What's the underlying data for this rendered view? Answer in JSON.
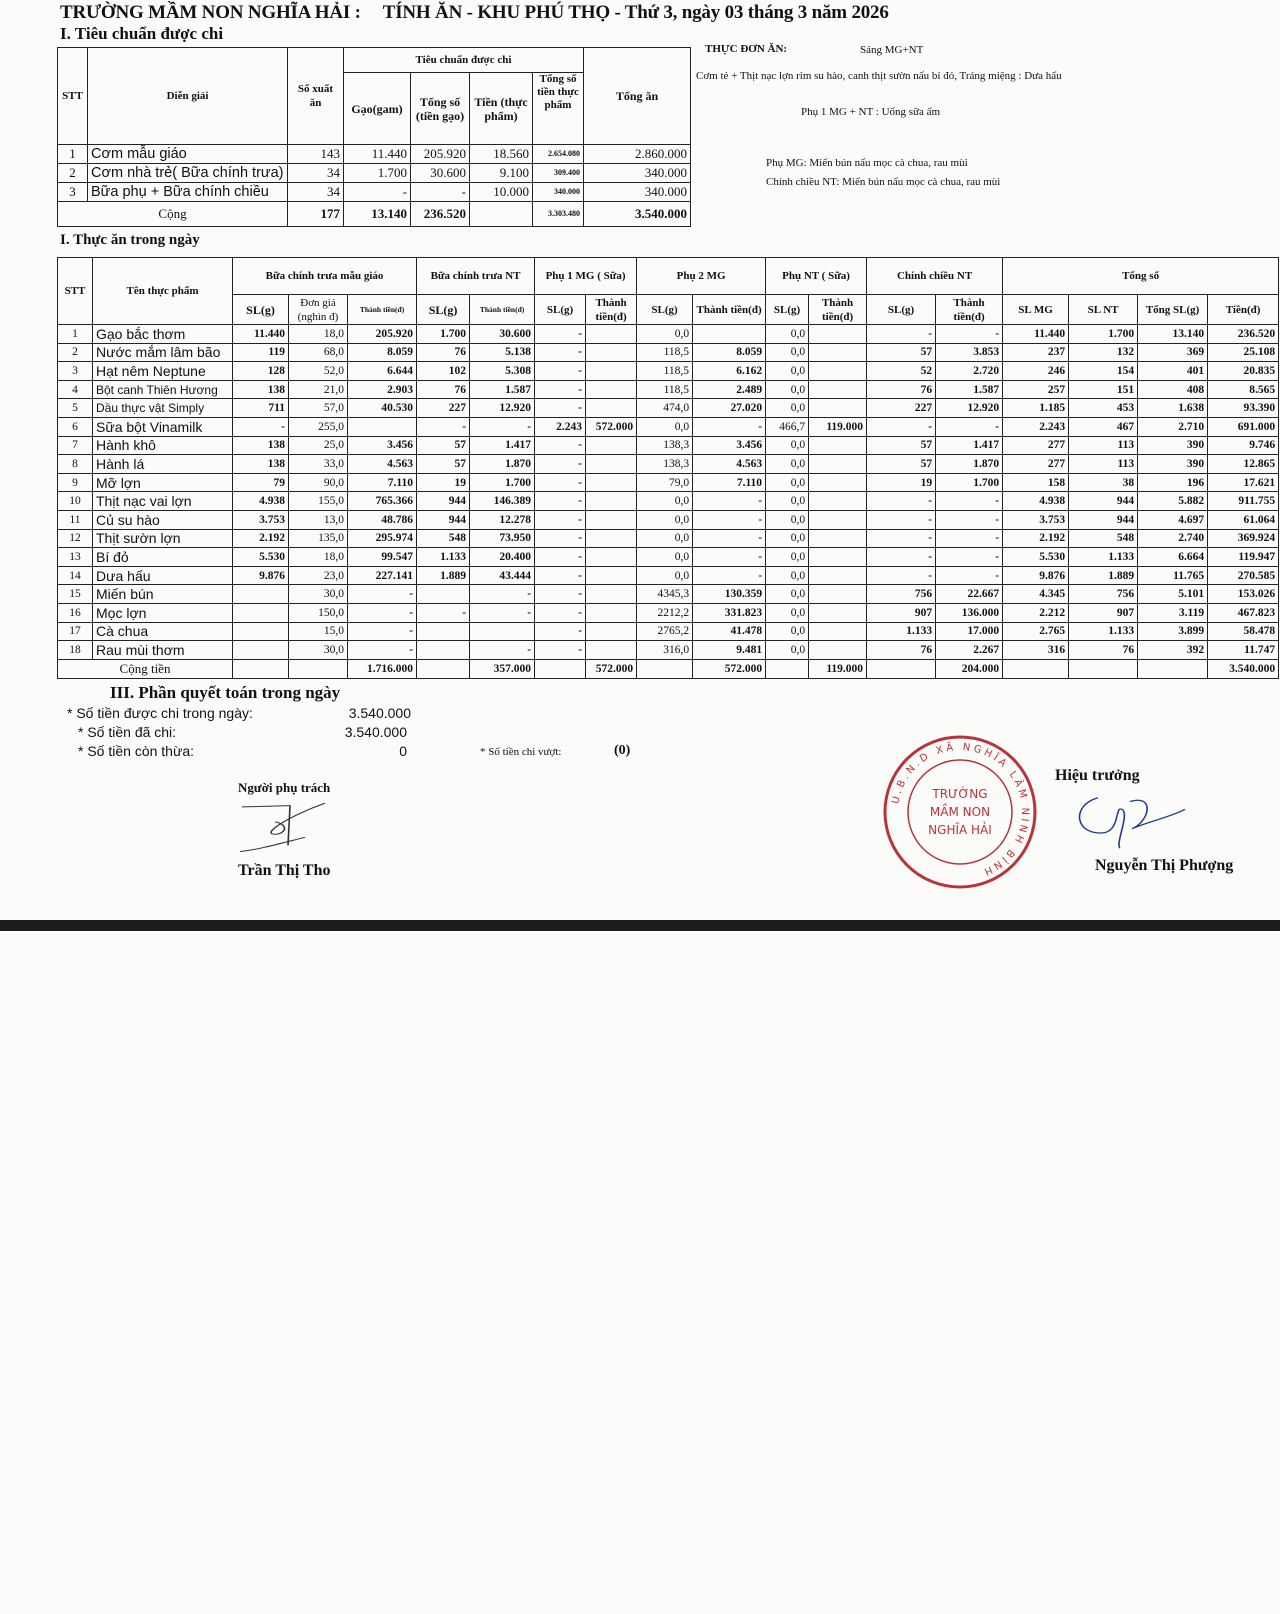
{
  "header": {
    "school": "TRƯỜNG MẦM NON NGHĨA HẢI :",
    "title": "TÍNH ĂN -  KHU PHÚ THỌ - Thứ 3, ngày 03 tháng 3 năm 2026"
  },
  "section1": {
    "heading": "I. Tiêu chuẩn được chi",
    "headers": {
      "stt": "STT",
      "dien_giai": "Diễn giải",
      "so_xuat_an": "Số xuất ăn",
      "group": "Tiêu chuẩn được chi",
      "gao": "Gạo(gam)",
      "tong_so": "Tổng số (tiền gạo)",
      "tien": "Tiền (thực phẩm)",
      "tong_tien": "Tổng số tiền thực phẩm",
      "tong_an": "Tổng ăn"
    },
    "rows": [
      {
        "stt": "1",
        "name": "Cơm mẫu giáo",
        "portions": "143",
        "rice_g": "11.440",
        "rice_money": "205.920",
        "food_money": "18.560",
        "total_food": "2.654.080",
        "total": "2.860.000"
      },
      {
        "stt": "2",
        "name": "Cơm nhà trẻ( Bữa chính trưa)",
        "portions": "34",
        "rice_g": "1.700",
        "rice_money": "30.600",
        "food_money": "9.100",
        "total_food": "309.400",
        "total": "340.000"
      },
      {
        "stt": "3",
        "name": "Bữa phụ + Bữa chính chiều",
        "portions": "34",
        "rice_g": "-",
        "rice_money": "-",
        "food_money": "10.000",
        "total_food": "340.000",
        "total": "340.000"
      }
    ],
    "total": {
      "label": "Cộng",
      "portions": "177",
      "rice_g": "13.140",
      "rice_money": "236.520",
      "food_money": "",
      "total_food": "3.303.480",
      "total": "3.540.000"
    }
  },
  "menu": {
    "label": "THỰC ĐƠN ĂN:",
    "morning": "Sáng MG+NT",
    "main": "Cơm tẻ + Thịt nạc lợn rim su hào, canh thịt sườn nấu bí đỏ, Tráng miệng : Dưa hấu",
    "snack1": "Phụ 1 MG + NT : Uống sữa ấm",
    "snack_mg": "Phụ MG: Miến bún nấu mọc cà chua, rau mùi",
    "afternoon_nt": "Chính chiều NT:  Miến bún nấu mọc cà chua, rau mùi"
  },
  "section2": {
    "heading": "I. Thực ăn trong ngày",
    "headers": {
      "stt": "STT",
      "name": "Tên thực phẩm",
      "g_mg": "Bữa chính trưa mẫu giáo",
      "g_nt": "Bữa chính trưa NT",
      "g_p1": "Phụ 1 MG ( Sữa)",
      "g_p2": "Phụ 2 MG",
      "g_pnt": "Phụ NT ( Sữa)",
      "g_cc": "Chính chiều NT",
      "g_total": "Tổng số",
      "sl": "SL(g)",
      "don_gia": "Đơn giá (nghìn đ)",
      "thanh_tien": "Thành tiền(đ)",
      "thanh_tien2": "Thành tiền(đ)",
      "sl_mg": "SL MG",
      "sl_nt": "SL NT",
      "tong_sl": "Tổng SL(g)",
      "tien": "Tiền(đ)"
    },
    "rows": [
      [
        "1",
        "Gạo bắc thơm",
        "11.440",
        "18,0",
        "205.920",
        "1.700",
        "30.600",
        "-",
        "",
        "0,0",
        "",
        "0,0",
        "",
        "-",
        "-",
        "11.440",
        "1.700",
        "13.140",
        "236.520"
      ],
      [
        "2",
        "Nước mắm lâm bão",
        "119",
        "68,0",
        "8.059",
        "76",
        "5.138",
        "-",
        "",
        "118,5",
        "8.059",
        "0,0",
        "",
        "57",
        "3.853",
        "237",
        "132",
        "369",
        "25.108"
      ],
      [
        "3",
        "Hạt nêm Neptune",
        "128",
        "52,0",
        "6.644",
        "102",
        "5.308",
        "-",
        "",
        "118,5",
        "6.162",
        "0,0",
        "",
        "52",
        "2.720",
        "246",
        "154",
        "401",
        "20.835"
      ],
      [
        "4",
        "Bột canh Thiên Hương",
        "138",
        "21,0",
        "2.903",
        "76",
        "1.587",
        "-",
        "",
        "118,5",
        "2.489",
        "0,0",
        "",
        "76",
        "1.587",
        "257",
        "151",
        "408",
        "8.565"
      ],
      [
        "5",
        "Dầu thực vật Simply",
        "711",
        "57,0",
        "40.530",
        "227",
        "12.920",
        "-",
        "",
        "474,0",
        "27.020",
        "0,0",
        "",
        "227",
        "12.920",
        "1.185",
        "453",
        "1.638",
        "93.390"
      ],
      [
        "6",
        "Sữa bột Vinamilk",
        "-",
        "255,0",
        "",
        "-",
        "-",
        "2.243",
        "572.000",
        "0,0",
        "-",
        "466,7",
        "119.000",
        "-",
        "-",
        "2.243",
        "467",
        "2.710",
        "691.000"
      ],
      [
        "7",
        "Hành khô",
        "138",
        "25,0",
        "3.456",
        "57",
        "1.417",
        "-",
        "",
        "138,3",
        "3.456",
        "0,0",
        "",
        "57",
        "1.417",
        "277",
        "113",
        "390",
        "9.746"
      ],
      [
        "8",
        "Hành lá",
        "138",
        "33,0",
        "4.563",
        "57",
        "1.870",
        "-",
        "",
        "138,3",
        "4.563",
        "0,0",
        "",
        "57",
        "1.870",
        "277",
        "113",
        "390",
        "12.865"
      ],
      [
        "9",
        "Mỡ lợn",
        "79",
        "90,0",
        "7.110",
        "19",
        "1.700",
        "-",
        "",
        "79,0",
        "7.110",
        "0,0",
        "",
        "19",
        "1.700",
        "158",
        "38",
        "196",
        "17.621"
      ],
      [
        "10",
        "Thịt nạc vai lợn",
        "4.938",
        "155,0",
        "765.366",
        "944",
        "146.389",
        "-",
        "",
        "0,0",
        "-",
        "0,0",
        "",
        "-",
        "-",
        "4.938",
        "944",
        "5.882",
        "911.755"
      ],
      [
        "11",
        "Củ su hào",
        "3.753",
        "13,0",
        "48.786",
        "944",
        "12.278",
        "-",
        "",
        "0,0",
        "-",
        "0,0",
        "",
        "-",
        "-",
        "3.753",
        "944",
        "4.697",
        "61.064"
      ],
      [
        "12",
        "Thịt sườn lợn",
        "2.192",
        "135,0",
        "295.974",
        "548",
        "73.950",
        "-",
        "",
        "0,0",
        "-",
        "0,0",
        "",
        "-",
        "-",
        "2.192",
        "548",
        "2.740",
        "369.924"
      ],
      [
        "13",
        "Bí đỏ",
        "5.530",
        "18,0",
        "99.547",
        "1.133",
        "20.400",
        "-",
        "",
        "0,0",
        "-",
        "0,0",
        "",
        "-",
        "-",
        "5.530",
        "1.133",
        "6.664",
        "119.947"
      ],
      [
        "14",
        "Dưa hấu",
        "9.876",
        "23,0",
        "227.141",
        "1.889",
        "43.444",
        "-",
        "",
        "0,0",
        "-",
        "0,0",
        "",
        "-",
        "-",
        "9.876",
        "1.889",
        "11.765",
        "270.585"
      ],
      [
        "15",
        "Miến bún",
        "",
        "30,0",
        "-",
        "",
        "-",
        "-",
        "",
        "4345,3",
        "130.359",
        "0,0",
        "",
        "756",
        "22.667",
        "4.345",
        "756",
        "5.101",
        "153.026"
      ],
      [
        "16",
        "Mọc lợn",
        "",
        "150,0",
        "-",
        "-",
        "-",
        "-",
        "",
        "2212,2",
        "331.823",
        "0,0",
        "",
        "907",
        "136.000",
        "2.212",
        "907",
        "3.119",
        "467.823"
      ],
      [
        "17",
        "Cà chua",
        "",
        "15,0",
        "-",
        "",
        "",
        "-",
        "",
        "2765,2",
        "41.478",
        "0,0",
        "",
        "1.133",
        "17.000",
        "2.765",
        "1.133",
        "3.899",
        "58.478"
      ],
      [
        "18",
        "Rau mùi thơm",
        "",
        "30,0",
        "-",
        "",
        "-",
        "-",
        "",
        "316,0",
        "9.481",
        "0,0",
        "",
        "76",
        "2.267",
        "316",
        "76",
        "392",
        "11.747"
      ]
    ],
    "total": {
      "label": "Cộng tiền",
      "mg": "1.716.000",
      "nt": "357.000",
      "p1": "572.000",
      "p2": "572.000",
      "pnt": "119.000",
      "cc": "204.000",
      "all": "3.540.000"
    }
  },
  "section3": {
    "heading": "III. Phần quyết toán trong ngày",
    "allowed_label": "* Số tiền được chi trong ngày:",
    "allowed": "3.540.000",
    "spent_label": "* Số tiền đã chi:",
    "spent": "3.540.000",
    "remaining_label": "* Số tiền còn thừa:",
    "remaining": "0",
    "over_label": "* Số tiền chi vượt:",
    "over": "(0)"
  },
  "signatures": {
    "left_title": "Người phụ trách",
    "left_name": "Trần Thị Tho",
    "right_title": "Hiệu trưởng",
    "right_name": "Nguyễn Thị Phượng",
    "stamp_ring": "U.B.N.D XÃ NGHĨA LÂM  NINH BÌNH",
    "stamp_center": [
      "TRƯỜNG",
      "MẦM NON",
      "NGHĨA HẢI"
    ],
    "stamp_color": "#b8343a",
    "ink_color": "#1f3a8a"
  }
}
